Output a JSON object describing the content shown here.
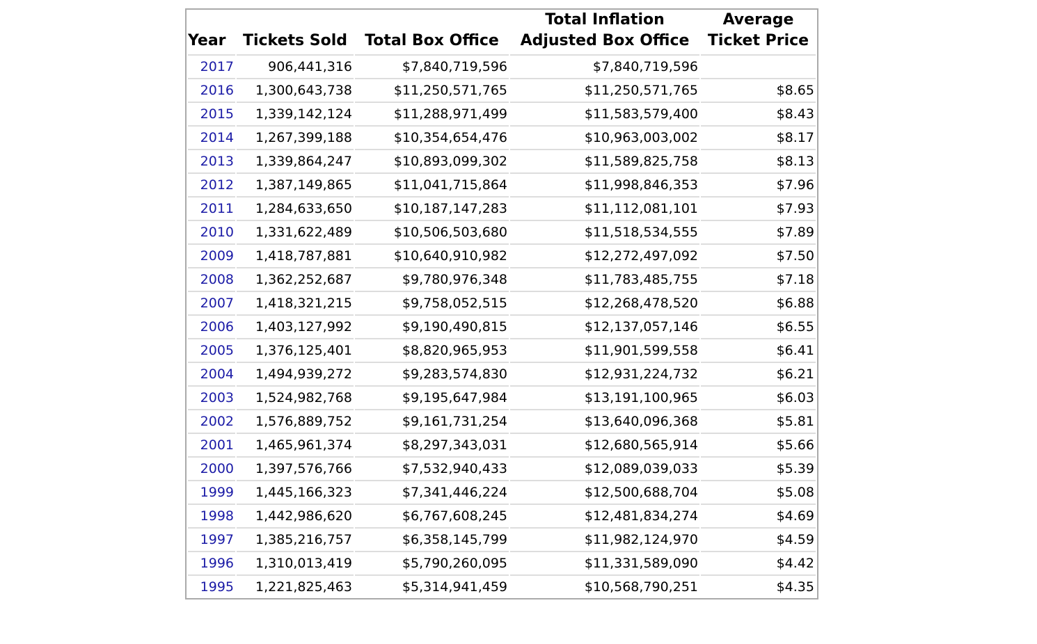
{
  "table": {
    "header": [
      "Year",
      "Tickets Sold",
      "Total Box Office",
      "Total Inflation Adjusted Box Office",
      "Average Ticket Price"
    ],
    "rows": [
      [
        "2017",
        "906,441,316",
        "$7,840,719,596",
        "$7,840,719,596",
        null
      ],
      [
        "2016",
        "1,300,643,738",
        "$11,250,571,765",
        "$11,250,571,765",
        "$8.65"
      ],
      [
        "2015",
        "1,339,142,124",
        "$11,288,971,499",
        "$11,583,579,400",
        "$8.43"
      ],
      [
        "2014",
        "1,267,399,188",
        "$10,354,654,476",
        "$10,963,003,002",
        "$8.17"
      ],
      [
        "2013",
        "1,339,864,247",
        "$10,893,099,302",
        "$11,589,825,758",
        "$8.13"
      ],
      [
        "2012",
        "1,387,149,865",
        "$11,041,715,864",
        "$11,998,846,353",
        "$7.96"
      ],
      [
        "2011",
        "1,284,633,650",
        "$10,187,147,283",
        "$11,112,081,101",
        "$7.93"
      ],
      [
        "2010",
        "1,331,622,489",
        "$10,506,503,680",
        "$11,518,534,555",
        "$7.89"
      ],
      [
        "2009",
        "1,418,787,881",
        "$10,640,910,982",
        "$12,272,497,092",
        "$7.50"
      ],
      [
        "2008",
        "1,362,252,687",
        "$9,780,976,348",
        "$11,783,485,755",
        "$7.18"
      ],
      [
        "2007",
        "1,418,321,215",
        "$9,758,052,515",
        "$12,268,478,520",
        "$6.88"
      ],
      [
        "2006",
        "1,403,127,992",
        "$9,190,490,815",
        "$12,137,057,146",
        "$6.55"
      ],
      [
        "2005",
        "1,376,125,401",
        "$8,820,965,953",
        "$11,901,599,558",
        "$6.41"
      ],
      [
        "2004",
        "1,494,939,272",
        "$9,283,574,830",
        "$12,931,224,732",
        "$6.21"
      ],
      [
        "2003",
        "1,524,982,768",
        "$9,195,647,984",
        "$13,191,100,965",
        "$6.03"
      ],
      [
        "2002",
        "1,576,889,752",
        "$9,161,731,254",
        "$13,640,096,368",
        "$5.81"
      ],
      [
        "2001",
        "1,465,961,374",
        "$8,297,343,031",
        "$12,680,565,914",
        "$5.66"
      ],
      [
        "2000",
        "1,397,576,766",
        "$7,532,940,433",
        "$12,089,039,033",
        "$5.39"
      ],
      [
        "1999",
        "1,445,166,323",
        "$7,341,446,224",
        "$12,500,688,704",
        "$5.08"
      ],
      [
        "1998",
        "1,442,986,620",
        "$6,767,608,245",
        "$12,481,834,274",
        "$4.69"
      ],
      [
        "1997",
        "1,385,216,757",
        "$6,358,145,799",
        "$11,982,124,970",
        "$4.59"
      ],
      [
        "1996",
        "1,310,013,419",
        "$5,790,260,095",
        "$11,331,589,090",
        "$4.42"
      ],
      [
        "1995",
        "1,221,825,463",
        "$5,314,941,459",
        "$10,568,790,251",
        "$4.35"
      ]
    ]
  }
}
